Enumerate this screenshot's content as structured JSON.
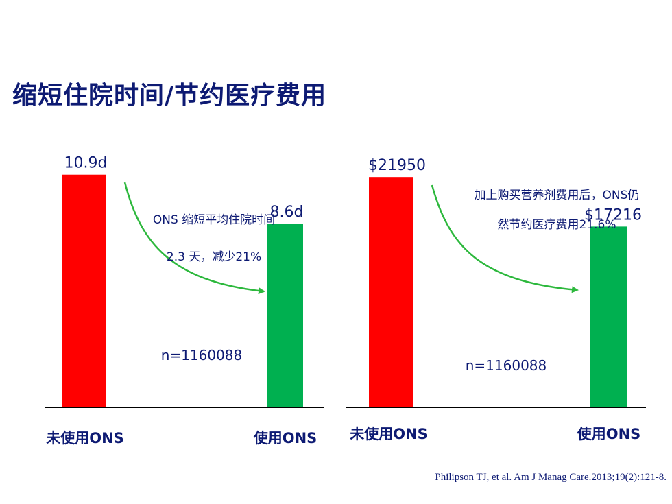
{
  "page": {
    "title": "缩短住院时间/节约医疗费用"
  },
  "colors": {
    "before": "#ff0000",
    "after": "#00b050",
    "text": "#0d1a73",
    "arrow": "#2db83d",
    "axis": "#000000"
  },
  "chart_data": [
    {
      "type": "bar",
      "categories": [
        "未使用ONS",
        "使用ONS"
      ],
      "values": [
        10.9,
        8.6
      ],
      "value_labels": [
        "10.9d",
        "8.6d"
      ],
      "ylim": [
        0,
        11.6
      ],
      "annotation": [
        "ONS 缩短平均住院时间",
        "2.3 天，减少21%"
      ],
      "n_label": "n=1160088"
    },
    {
      "type": "bar",
      "categories": [
        "未使用ONS",
        "使用ONS"
      ],
      "values": [
        21950,
        17216
      ],
      "value_labels": [
        "$21950",
        "$17216"
      ],
      "ylim": [
        0,
        23600
      ],
      "annotation": [
        "加上购买营养剂费用后，ONS仍",
        "然节约医疗费用21.6%"
      ],
      "n_label": "n=1160088"
    }
  ],
  "citation": "Philipson TJ,  et al. Am J Manag Care.2013;19(2):121-8."
}
